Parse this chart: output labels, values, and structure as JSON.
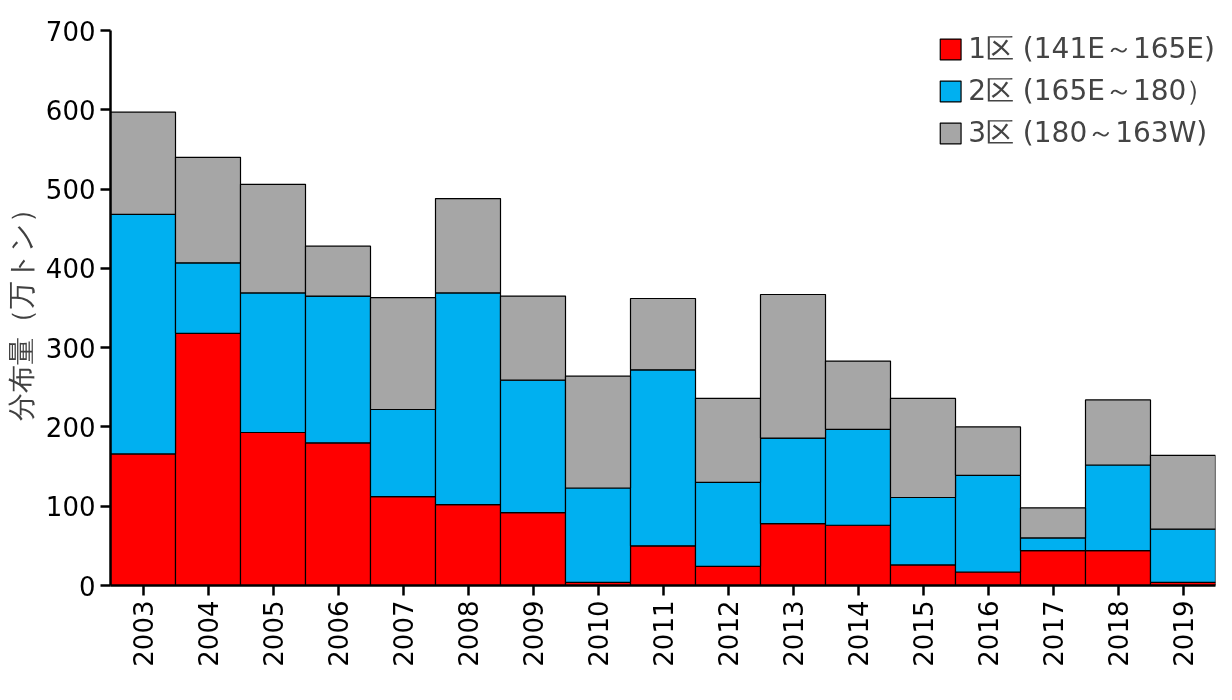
{
  "chart_data": {
    "type": "bar",
    "stacked": true,
    "ylabel": "分布量（万トン）",
    "categories": [
      "2003",
      "2004",
      "2005",
      "2006",
      "2007",
      "2008",
      "2009",
      "2010",
      "2011",
      "2012",
      "2013",
      "2014",
      "2015",
      "2016",
      "2017",
      "2018",
      "2019"
    ],
    "series": [
      {
        "name": "1区 (141E～165E)",
        "color": "#ff0000",
        "values": [
          166,
          318,
          193,
          180,
          112,
          102,
          92,
          4,
          50,
          24,
          78,
          76,
          26,
          17,
          44,
          44,
          4
        ]
      },
      {
        "name": "2区 (165E～180）",
        "color": "#00b0f0",
        "values": [
          302,
          89,
          176,
          185,
          110,
          267,
          167,
          119,
          222,
          106,
          108,
          121,
          85,
          122,
          16,
          108,
          67
        ]
      },
      {
        "name": "3区 (180～163W)",
        "color": "#a6a6a6",
        "values": [
          129,
          133,
          137,
          63,
          141,
          119,
          106,
          141,
          90,
          106,
          181,
          86,
          125,
          61,
          38,
          82,
          93
        ]
      }
    ],
    "ylim": [
      0,
      700
    ],
    "yticks": [
      0,
      100,
      200,
      300,
      400,
      500,
      600,
      700
    ],
    "grid": false,
    "legend": "top right"
  }
}
